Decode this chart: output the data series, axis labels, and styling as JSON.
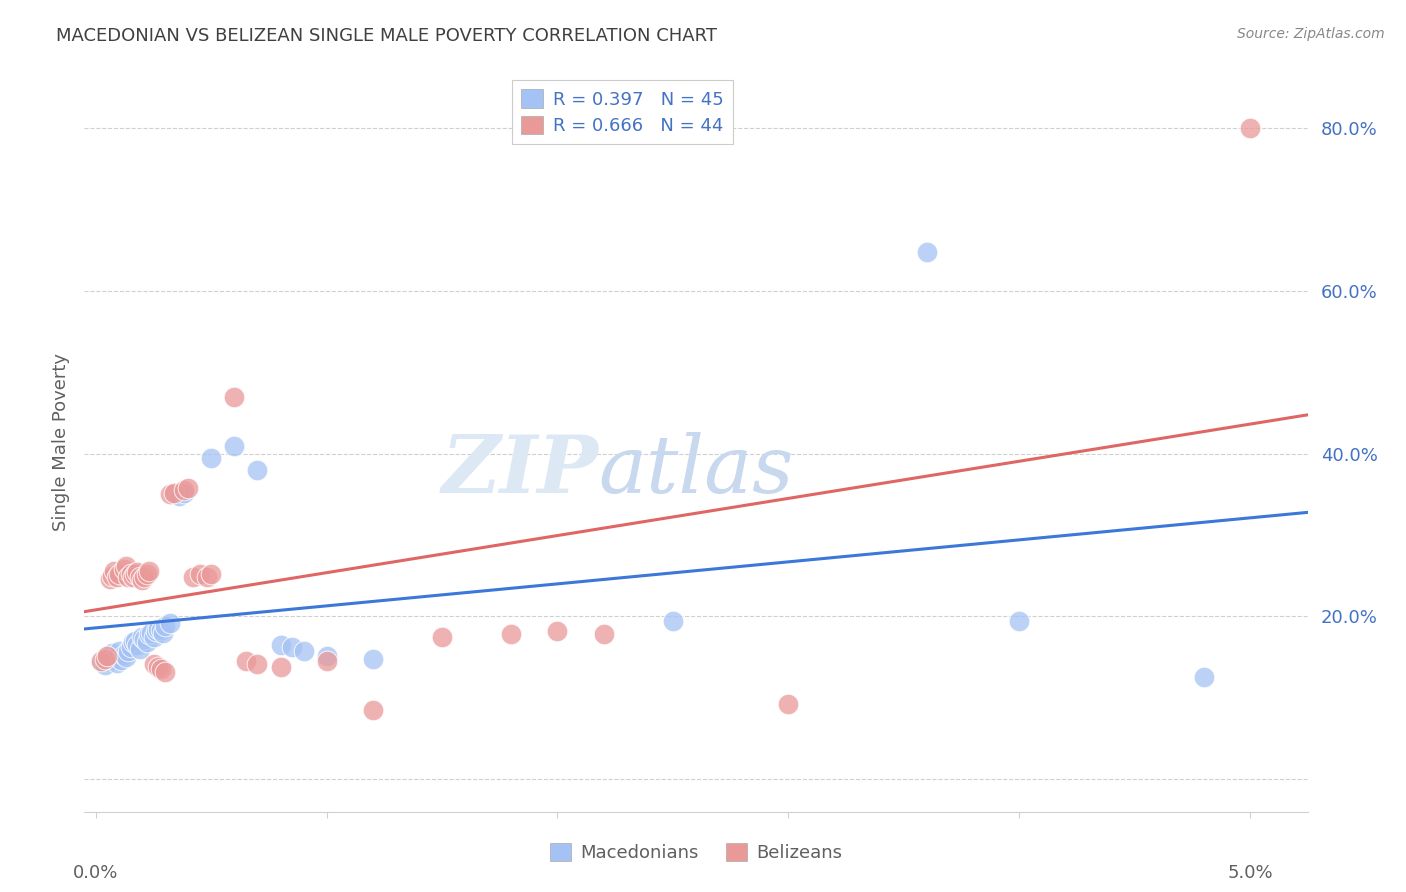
{
  "title": "MACEDONIAN VS BELIZEAN SINGLE MALE POVERTY CORRELATION CHART",
  "source": "Source: ZipAtlas.com",
  "ylabel_text": "Single Male Poverty",
  "watermark_zip": "ZIP",
  "watermark_atlas": "atlas",
  "macedonian_color": "#a4c2f4",
  "belizean_color": "#ea9999",
  "mac_line_color": "#3c78d8",
  "bel_line_color": "#e06666",
  "x_min": -0.0005,
  "x_max": 0.0525,
  "y_min": -0.04,
  "y_max": 0.87,
  "y_ticks": [
    0.0,
    0.2,
    0.4,
    0.6,
    0.8
  ],
  "y_tick_labels": [
    "",
    "20.0%",
    "40.0%",
    "60.0%",
    "80.0%"
  ],
  "background_color": "#ffffff",
  "grid_color": "#d0d0d0",
  "title_color": "#404040",
  "axis_label_color": "#606060",
  "tick_color": "#4472c4",
  "legend_R_color": "#4472c4",
  "legend_N_color": "#4472c4",
  "mac_R": 0.397,
  "mac_N": 45,
  "bel_R": 0.666,
  "bel_N": 44,
  "macedonian_scatter": [
    [
      0.0002,
      0.145
    ],
    [
      0.0003,
      0.148
    ],
    [
      0.0004,
      0.14
    ],
    [
      0.0005,
      0.152
    ],
    [
      0.0006,
      0.15
    ],
    [
      0.0007,
      0.155
    ],
    [
      0.0008,
      0.148
    ],
    [
      0.0009,
      0.143
    ],
    [
      0.001,
      0.158
    ],
    [
      0.0011,
      0.146
    ],
    [
      0.0012,
      0.153
    ],
    [
      0.0013,
      0.15
    ],
    [
      0.0014,
      0.158
    ],
    [
      0.0015,
      0.163
    ],
    [
      0.0016,
      0.168
    ],
    [
      0.0017,
      0.17
    ],
    [
      0.0018,
      0.165
    ],
    [
      0.0019,
      0.16
    ],
    [
      0.002,
      0.175
    ],
    [
      0.0021,
      0.172
    ],
    [
      0.0022,
      0.168
    ],
    [
      0.0023,
      0.178
    ],
    [
      0.0024,
      0.18
    ],
    [
      0.0025,
      0.175
    ],
    [
      0.0026,
      0.182
    ],
    [
      0.0027,
      0.185
    ],
    [
      0.0028,
      0.183
    ],
    [
      0.0029,
      0.18
    ],
    [
      0.003,
      0.188
    ],
    [
      0.0032,
      0.192
    ],
    [
      0.0034,
      0.35
    ],
    [
      0.0036,
      0.348
    ],
    [
      0.0038,
      0.352
    ],
    [
      0.005,
      0.395
    ],
    [
      0.006,
      0.41
    ],
    [
      0.007,
      0.38
    ],
    [
      0.008,
      0.165
    ],
    [
      0.0085,
      0.162
    ],
    [
      0.009,
      0.158
    ],
    [
      0.01,
      0.152
    ],
    [
      0.012,
      0.148
    ],
    [
      0.025,
      0.195
    ],
    [
      0.036,
      0.648
    ],
    [
      0.04,
      0.195
    ],
    [
      0.048,
      0.125
    ]
  ],
  "belizean_scatter": [
    [
      0.0002,
      0.145
    ],
    [
      0.0004,
      0.148
    ],
    [
      0.0005,
      0.152
    ],
    [
      0.0006,
      0.246
    ],
    [
      0.0007,
      0.25
    ],
    [
      0.0008,
      0.256
    ],
    [
      0.0009,
      0.248
    ],
    [
      0.001,
      0.252
    ],
    [
      0.0012,
      0.258
    ],
    [
      0.0013,
      0.262
    ],
    [
      0.0014,
      0.248
    ],
    [
      0.0015,
      0.252
    ],
    [
      0.0016,
      0.248
    ],
    [
      0.0017,
      0.252
    ],
    [
      0.0018,
      0.255
    ],
    [
      0.0019,
      0.248
    ],
    [
      0.002,
      0.245
    ],
    [
      0.0021,
      0.248
    ],
    [
      0.0022,
      0.252
    ],
    [
      0.0023,
      0.256
    ],
    [
      0.0025,
      0.142
    ],
    [
      0.0027,
      0.138
    ],
    [
      0.0028,
      0.135
    ],
    [
      0.003,
      0.132
    ],
    [
      0.0032,
      0.35
    ],
    [
      0.0034,
      0.352
    ],
    [
      0.0038,
      0.355
    ],
    [
      0.004,
      0.358
    ],
    [
      0.0042,
      0.248
    ],
    [
      0.0045,
      0.252
    ],
    [
      0.0048,
      0.248
    ],
    [
      0.005,
      0.252
    ],
    [
      0.006,
      0.47
    ],
    [
      0.0065,
      0.145
    ],
    [
      0.007,
      0.142
    ],
    [
      0.008,
      0.138
    ],
    [
      0.01,
      0.145
    ],
    [
      0.012,
      0.085
    ],
    [
      0.015,
      0.175
    ],
    [
      0.018,
      0.178
    ],
    [
      0.02,
      0.182
    ],
    [
      0.022,
      0.178
    ],
    [
      0.03,
      0.092
    ],
    [
      0.05,
      0.8
    ]
  ]
}
